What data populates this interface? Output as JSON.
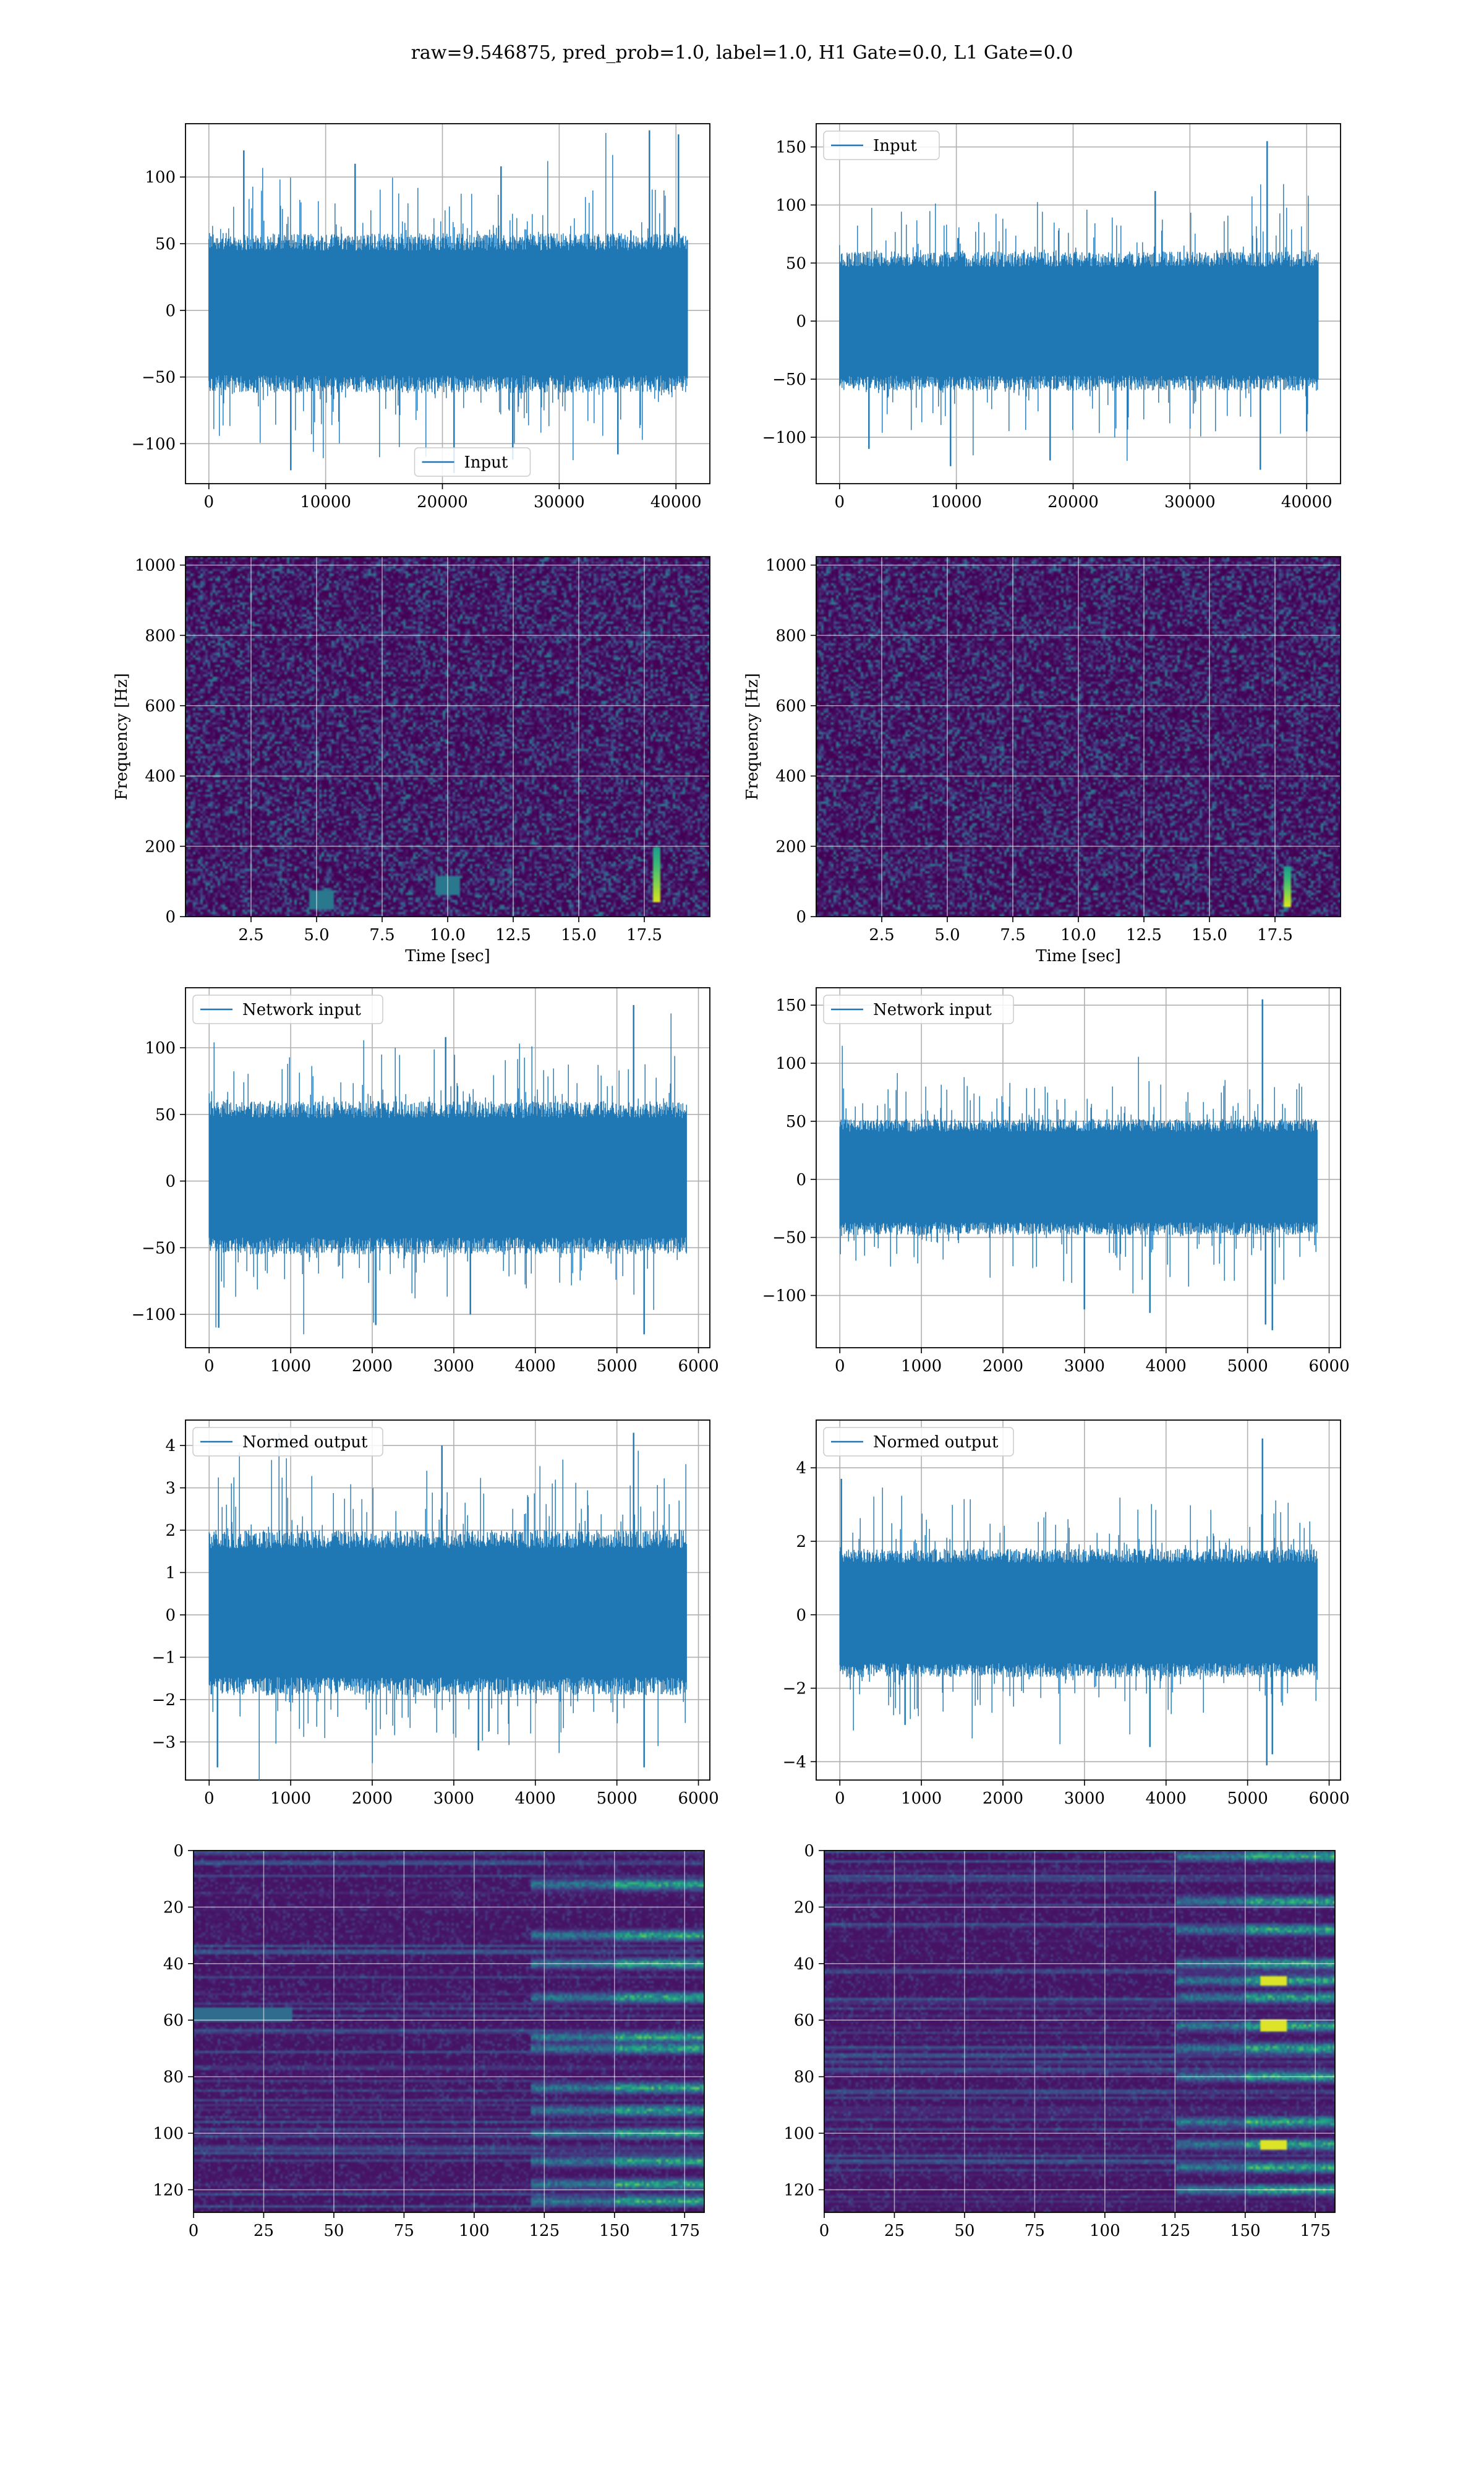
{
  "figure": {
    "title": "raw=9.546875, pred_prob=1.0, label=1.0, H1 Gate=0.0, L1 Gate=0.0",
    "line_color": "#1f77b4",
    "grid_color": "#b0b0b0",
    "colormap": "viridis"
  },
  "chart_data": [
    {
      "id": "h1-input",
      "type": "line",
      "legend": "Input",
      "legend_loc": "lower center",
      "grid": true,
      "xlim": [
        -2000,
        42900
      ],
      "ylim": [
        -130,
        140
      ],
      "xticks": [
        0,
        10000,
        20000,
        30000,
        40000
      ],
      "yticks": [
        -100,
        -50,
        0,
        50,
        100
      ],
      "x_range": [
        0,
        40960
      ],
      "band": [
        -62,
        58
      ],
      "spikes": [
        [
          3000,
          120
        ],
        [
          7000,
          -120
        ],
        [
          12500,
          110
        ],
        [
          21000,
          -122
        ],
        [
          25000,
          108
        ],
        [
          26000,
          -112
        ],
        [
          29000,
          112
        ],
        [
          35000,
          -108
        ],
        [
          37700,
          135
        ],
        [
          40200,
          132
        ]
      ],
      "series": [
        {
          "name": "Input",
          "note": "dense noise, ~40960 samples, envelope approx. -120..135"
        }
      ]
    },
    {
      "id": "l1-input",
      "type": "line",
      "legend": "Input",
      "legend_loc": "upper left",
      "grid": true,
      "xlim": [
        -2000,
        42900
      ],
      "ylim": [
        -140,
        170
      ],
      "xticks": [
        0,
        10000,
        20000,
        30000,
        40000
      ],
      "yticks": [
        -100,
        -50,
        0,
        50,
        100,
        150
      ],
      "x_range": [
        0,
        40960
      ],
      "band": [
        -60,
        60
      ],
      "spikes": [
        [
          2500,
          -110
        ],
        [
          9500,
          -125
        ],
        [
          18000,
          -120
        ],
        [
          27000,
          112
        ],
        [
          36000,
          -128
        ],
        [
          36600,
          155
        ],
        [
          38000,
          118
        ],
        [
          40000,
          -95
        ]
      ],
      "series": [
        {
          "name": "Input",
          "note": "dense noise, ~40960 samples, envelope approx. -128..155"
        }
      ]
    },
    {
      "id": "h1-spectrogram",
      "type": "heatmap",
      "xlabel": "Time [sec]",
      "ylabel": "Frequency [Hz]",
      "grid": true,
      "xlim": [
        0,
        20
      ],
      "ylim": [
        0,
        1024
      ],
      "xticks": [
        2.5,
        5.0,
        7.5,
        10.0,
        12.5,
        15.0,
        17.5
      ],
      "xticklabels": [
        "2.5",
        "5.0",
        "7.5",
        "10.0",
        "12.5",
        "15.0",
        "17.5"
      ],
      "yticks": [
        0,
        200,
        400,
        600,
        800,
        1000
      ],
      "features": [
        {
          "kind": "chirp",
          "t": 18.0,
          "f_low": 40,
          "f_high": 200
        },
        {
          "kind": "blob",
          "t": 10.0,
          "f": 90
        },
        {
          "kind": "blob",
          "t": 5.2,
          "f": 50
        }
      ]
    },
    {
      "id": "l1-spectrogram",
      "type": "heatmap",
      "xlabel": "Time [sec]",
      "ylabel": "Frequency [Hz]",
      "grid": true,
      "xlim": [
        0,
        20
      ],
      "ylim": [
        0,
        1024
      ],
      "xticks": [
        2.5,
        5.0,
        7.5,
        10.0,
        12.5,
        15.0,
        17.5
      ],
      "xticklabels": [
        "2.5",
        "5.0",
        "7.5",
        "10.0",
        "12.5",
        "15.0",
        "17.5"
      ],
      "yticks": [
        0,
        200,
        400,
        600,
        800,
        1000
      ],
      "features": [
        {
          "kind": "chirp",
          "t": 18.0,
          "f_low": 30,
          "f_high": 140
        }
      ]
    },
    {
      "id": "h1-network-input",
      "type": "line",
      "legend": "Network input",
      "legend_loc": "upper left",
      "grid": true,
      "xlim": [
        -290,
        6140
      ],
      "ylim": [
        -125,
        145
      ],
      "xticks": [
        0,
        1000,
        2000,
        3000,
        4000,
        5000,
        6000
      ],
      "yticks": [
        -100,
        -50,
        0,
        50,
        100
      ],
      "x_range": [
        0,
        5850
      ],
      "band": [
        -55,
        60
      ],
      "spikes": [
        [
          120,
          -110
        ],
        [
          2040,
          -108
        ],
        [
          2900,
          108
        ],
        [
          3200,
          -100
        ],
        [
          5200,
          132
        ],
        [
          5330,
          -115
        ]
      ],
      "series": [
        {
          "name": "Network input",
          "note": "~5850 samples, envelope approx. -115..132"
        }
      ]
    },
    {
      "id": "l1-network-input",
      "type": "line",
      "legend": "Network input",
      "legend_loc": "upper left",
      "grid": true,
      "xlim": [
        -290,
        6140
      ],
      "ylim": [
        -145,
        165
      ],
      "xticks": [
        0,
        1000,
        2000,
        3000,
        4000,
        5000,
        6000
      ],
      "yticks": [
        -100,
        -50,
        0,
        50,
        100,
        150
      ],
      "x_range": [
        0,
        5850
      ],
      "band": [
        -48,
        52
      ],
      "spikes": [
        [
          30,
          115
        ],
        [
          3000,
          -112
        ],
        [
          3800,
          -115
        ],
        [
          5180,
          155
        ],
        [
          5220,
          -125
        ],
        [
          5300,
          -130
        ]
      ],
      "series": [
        {
          "name": "Network input",
          "note": "~5850 samples, envelope approx. -130..155"
        }
      ]
    },
    {
      "id": "h1-normed-output",
      "type": "line",
      "legend": "Normed output",
      "legend_loc": "upper left",
      "grid": true,
      "xlim": [
        -290,
        6140
      ],
      "ylim": [
        -3.9,
        4.6
      ],
      "xticks": [
        0,
        1000,
        2000,
        3000,
        4000,
        5000,
        6000
      ],
      "yticks": [
        -3,
        -2,
        -1,
        0,
        1,
        2,
        3,
        4
      ],
      "x_range": [
        0,
        5850
      ],
      "band": [
        -1.9,
        2.0
      ],
      "spikes": [
        [
          100,
          -3.6
        ],
        [
          2000,
          -3.5
        ],
        [
          2850,
          4.0
        ],
        [
          3300,
          -3.2
        ],
        [
          5200,
          4.3
        ],
        [
          5330,
          -3.6
        ]
      ],
      "series": [
        {
          "name": "Normed output",
          "note": "~5850 samples, envelope approx. -3.6..4.3"
        }
      ]
    },
    {
      "id": "l1-normed-output",
      "type": "line",
      "legend": "Normed output",
      "legend_loc": "upper left",
      "grid": true,
      "xlim": [
        -290,
        6140
      ],
      "ylim": [
        -4.5,
        5.3
      ],
      "xticks": [
        0,
        1000,
        2000,
        3000,
        4000,
        5000,
        6000
      ],
      "yticks": [
        -4,
        -2,
        0,
        2,
        4
      ],
      "x_range": [
        0,
        5850
      ],
      "band": [
        -1.7,
        1.8
      ],
      "spikes": [
        [
          20,
          3.7
        ],
        [
          800,
          -3.0
        ],
        [
          3800,
          -3.6
        ],
        [
          5180,
          4.8
        ],
        [
          5230,
          -4.1
        ],
        [
          5300,
          -3.8
        ]
      ],
      "series": [
        {
          "name": "Normed output",
          "note": "~5850 samples, envelope approx. -4.1..4.8"
        }
      ]
    },
    {
      "id": "h1-feature-map",
      "type": "heatmap",
      "grid": true,
      "xlim": [
        0,
        182
      ],
      "ylim": [
        128,
        0
      ],
      "xticks": [
        0,
        25,
        50,
        75,
        100,
        125,
        150,
        175
      ],
      "yticks": [
        0,
        20,
        40,
        60,
        80,
        100,
        120
      ],
      "features": [
        {
          "kind": "columns",
          "x_from": 120,
          "x_to": 182,
          "rows": [
            12,
            30,
            40,
            52,
            66,
            70,
            84,
            92,
            100,
            110,
            118,
            124
          ]
        },
        {
          "kind": "streak",
          "x_from": 0,
          "x_to": 35,
          "row": 58
        }
      ]
    },
    {
      "id": "l1-feature-map",
      "type": "heatmap",
      "grid": true,
      "xlim": [
        0,
        182
      ],
      "ylim": [
        128,
        0
      ],
      "xticks": [
        0,
        25,
        50,
        75,
        100,
        125,
        150,
        175
      ],
      "yticks": [
        0,
        20,
        40,
        60,
        80,
        100,
        120
      ],
      "features": [
        {
          "kind": "columns",
          "x_from": 125,
          "x_to": 182,
          "rows": [
            2,
            18,
            28,
            40,
            46,
            52,
            62,
            70,
            80,
            96,
            104,
            112,
            120
          ]
        },
        {
          "kind": "hot",
          "x": 160,
          "rows": [
            46,
            62,
            104
          ]
        }
      ]
    }
  ]
}
